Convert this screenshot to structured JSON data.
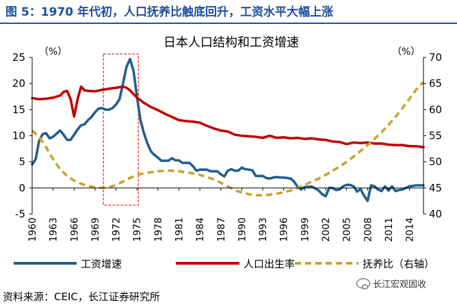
{
  "header": {
    "title": "图 5：1970 年代初，人口抚养比触底回升，工资水平大幅上涨"
  },
  "footer": {
    "source": "资料来源：CEIC，长江证券研究所",
    "watermark": "长江宏观固收"
  },
  "chart_data": {
    "type": "line",
    "title": "日本人口结构和工资增速",
    "left_axis_unit": "（%）",
    "right_axis_unit": "（%）",
    "ylim_left": [
      -5,
      25
    ],
    "yticks_left": [
      -5,
      0,
      5,
      10,
      15,
      20,
      25
    ],
    "ylim_right": [
      40,
      70
    ],
    "yticks_right": [
      40,
      45,
      50,
      55,
      60,
      65,
      70
    ],
    "xlim": [
      1960,
      2016
    ],
    "xticks": [
      "1960",
      "1963",
      "1966",
      "1969",
      "1972",
      "1975",
      "1978",
      "1981",
      "1984",
      "1987",
      "1990",
      "1993",
      "1996",
      "1999",
      "2002",
      "2005",
      "2008",
      "2011",
      "2014"
    ],
    "highlight_range": [
      1970.2,
      1975.2
    ],
    "highlight_color": "#e53935",
    "legend_position": "bottom",
    "series": [
      {
        "name": "工资增速",
        "axis": "left",
        "color": "#1f5f8b",
        "style": "solid",
        "points": [
          [
            1960,
            4.5
          ],
          [
            1960.5,
            5.5
          ],
          [
            1961,
            9
          ],
          [
            1961.5,
            10.3
          ],
          [
            1962,
            10.5
          ],
          [
            1962.5,
            9.5
          ],
          [
            1963,
            9.8
          ],
          [
            1963.5,
            10.4
          ],
          [
            1964,
            11
          ],
          [
            1964.5,
            10.2
          ],
          [
            1965,
            9.2
          ],
          [
            1965.5,
            9.2
          ],
          [
            1966,
            10.2
          ],
          [
            1966.5,
            11.2
          ],
          [
            1967,
            12
          ],
          [
            1967.5,
            12.2
          ],
          [
            1968,
            13
          ],
          [
            1968.5,
            13.6
          ],
          [
            1969,
            14.5
          ],
          [
            1969.5,
            15.2
          ],
          [
            1970,
            15.3
          ],
          [
            1970.5,
            15
          ],
          [
            1971,
            15
          ],
          [
            1971.5,
            15.3
          ],
          [
            1972,
            16
          ],
          [
            1972.5,
            17
          ],
          [
            1973,
            20
          ],
          [
            1973.5,
            23.2
          ],
          [
            1974,
            24.7
          ],
          [
            1974.5,
            22.5
          ],
          [
            1975,
            17.5
          ],
          [
            1975.5,
            13
          ],
          [
            1976,
            10.5
          ],
          [
            1976.5,
            8.5
          ],
          [
            1977,
            7
          ],
          [
            1977.5,
            6.3
          ],
          [
            1978,
            5.8
          ],
          [
            1978.5,
            5.2
          ],
          [
            1979,
            5.2
          ],
          [
            1979.5,
            5.2
          ],
          [
            1980,
            5.7
          ],
          [
            1980.5,
            5.3
          ],
          [
            1981,
            5.3
          ],
          [
            1981.5,
            4.8
          ],
          [
            1982,
            4.8
          ],
          [
            1982.5,
            4.8
          ],
          [
            1983,
            4.2
          ],
          [
            1983.5,
            3.3
          ],
          [
            1984,
            3.5
          ],
          [
            1984.5,
            3.5
          ],
          [
            1985,
            3.5
          ],
          [
            1985.5,
            3.2
          ],
          [
            1986,
            3.2
          ],
          [
            1986.5,
            3.2
          ],
          [
            1987,
            2.6
          ],
          [
            1987.5,
            2.2
          ],
          [
            1988,
            3.3
          ],
          [
            1988.5,
            3.6
          ],
          [
            1989,
            3.3
          ],
          [
            1989.5,
            3.3
          ],
          [
            1990,
            3.9
          ],
          [
            1990.5,
            3.6
          ],
          [
            1991,
            3.5
          ],
          [
            1991.5,
            3.4
          ],
          [
            1992,
            2.3
          ],
          [
            1992.5,
            2.3
          ],
          [
            1993,
            2.3
          ],
          [
            1993.5,
            1.9
          ],
          [
            1994,
            1.8
          ],
          [
            1994.5,
            2
          ],
          [
            1995,
            2.1
          ],
          [
            1995.5,
            2
          ],
          [
            1996,
            2
          ],
          [
            1996.5,
            1.9
          ],
          [
            1997,
            1.8
          ],
          [
            1997.5,
            1.2
          ],
          [
            1998,
            0.2
          ],
          [
            1998.5,
            -0.3
          ],
          [
            1999,
            0.2
          ],
          [
            1999.5,
            0.2
          ],
          [
            2000,
            0.3
          ],
          [
            2000.5,
            -0.1
          ],
          [
            2001,
            -0.5
          ],
          [
            2001.5,
            -1.2
          ],
          [
            2002,
            -1.6
          ],
          [
            2002.5,
            0
          ],
          [
            2003,
            0
          ],
          [
            2003.5,
            -0.4
          ],
          [
            2004,
            -0.3
          ],
          [
            2004.5,
            0.3
          ],
          [
            2005,
            0.6
          ],
          [
            2005.5,
            0.6
          ],
          [
            2006,
            0.3
          ],
          [
            2006.5,
            -0.7
          ],
          [
            2007,
            -0.2
          ],
          [
            2007.5,
            -1.5
          ],
          [
            2008,
            -2.5
          ],
          [
            2008.5,
            0.5
          ],
          [
            2009,
            0.3
          ],
          [
            2009.5,
            -0.3
          ],
          [
            2010,
            -0.6
          ],
          [
            2010.5,
            0.3
          ],
          [
            2011,
            -0.5
          ],
          [
            2011.5,
            0.3
          ],
          [
            2012,
            -0.6
          ],
          [
            2012.5,
            -0.4
          ],
          [
            2013,
            -0.3
          ],
          [
            2013.5,
            0
          ],
          [
            2014,
            0.3
          ],
          [
            2014.5,
            0.4
          ],
          [
            2015,
            0.5
          ],
          [
            2016,
            0.5
          ]
        ]
      },
      {
        "name": "人口出生率",
        "axis": "left",
        "color": "#c00000",
        "style": "solid",
        "points": [
          [
            1960,
            17.2
          ],
          [
            1961,
            17
          ],
          [
            1962,
            17.1
          ],
          [
            1963,
            17.3
          ],
          [
            1964,
            17.7
          ],
          [
            1964.5,
            18.4
          ],
          [
            1965,
            18.6
          ],
          [
            1965.5,
            17
          ],
          [
            1966,
            13.7
          ],
          [
            1966.5,
            17
          ],
          [
            1967,
            19.4
          ],
          [
            1967.5,
            18.7
          ],
          [
            1968,
            18.6
          ],
          [
            1969,
            18.5
          ],
          [
            1970,
            18.8
          ],
          [
            1971,
            19
          ],
          [
            1972,
            19.2
          ],
          [
            1973,
            19.4
          ],
          [
            1973.5,
            19.2
          ],
          [
            1974,
            18.7
          ],
          [
            1975,
            17.3
          ],
          [
            1976,
            16.3
          ],
          [
            1977,
            15.5
          ],
          [
            1978,
            14.9
          ],
          [
            1979,
            14.2
          ],
          [
            1980,
            13.6
          ],
          [
            1981,
            13
          ],
          [
            1982,
            12.8
          ],
          [
            1983,
            12.7
          ],
          [
            1984,
            12.5
          ],
          [
            1985,
            11.9
          ],
          [
            1986,
            11.4
          ],
          [
            1987,
            11
          ],
          [
            1988,
            10.8
          ],
          [
            1989,
            10.2
          ],
          [
            1990,
            10
          ],
          [
            1991,
            9.9
          ],
          [
            1992,
            9.8
          ],
          [
            1993,
            9.6
          ],
          [
            1994,
            10
          ],
          [
            1995,
            9.6
          ],
          [
            1996,
            9.7
          ],
          [
            1997,
            9.5
          ],
          [
            1998,
            9.6
          ],
          [
            1999,
            9.4
          ],
          [
            2000,
            9.5
          ],
          [
            2001,
            9.3
          ],
          [
            2002,
            9.2
          ],
          [
            2003,
            8.9
          ],
          [
            2004,
            8.8
          ],
          [
            2005,
            8.4
          ],
          [
            2006,
            8.7
          ],
          [
            2007,
            8.6
          ],
          [
            2008,
            8.7
          ],
          [
            2009,
            8.5
          ],
          [
            2010,
            8.5
          ],
          [
            2011,
            8.3
          ],
          [
            2012,
            8.2
          ],
          [
            2013,
            8.2
          ],
          [
            2014,
            8
          ],
          [
            2015,
            8
          ],
          [
            2016,
            7.8
          ]
        ]
      },
      {
        "name": "抚养比（右轴）",
        "axis": "right",
        "color": "#c9a227",
        "style": "dashed",
        "points": [
          [
            1960,
            56
          ],
          [
            1961,
            54.8
          ],
          [
            1962,
            52.8
          ],
          [
            1963,
            50.5
          ],
          [
            1964,
            48.6
          ],
          [
            1965,
            47.3
          ],
          [
            1966,
            46.4
          ],
          [
            1967,
            45.8
          ],
          [
            1968,
            45.4
          ],
          [
            1969,
            45.1
          ],
          [
            1970,
            45
          ],
          [
            1971,
            45.1
          ],
          [
            1972,
            45.6
          ],
          [
            1973,
            46.2
          ],
          [
            1974,
            46.9
          ],
          [
            1975,
            47.5
          ],
          [
            1976,
            47.8
          ],
          [
            1977,
            48
          ],
          [
            1978,
            48.2
          ],
          [
            1979,
            48.3
          ],
          [
            1980,
            48.3
          ],
          [
            1981,
            48.2
          ],
          [
            1982,
            48
          ],
          [
            1983,
            47.8
          ],
          [
            1984,
            47.5
          ],
          [
            1985,
            47.1
          ],
          [
            1986,
            46.6
          ],
          [
            1987,
            46
          ],
          [
            1988,
            45.3
          ],
          [
            1989,
            44.6
          ],
          [
            1990,
            44.1
          ],
          [
            1991,
            43.8
          ],
          [
            1992,
            43.6
          ],
          [
            1993,
            43.6
          ],
          [
            1994,
            43.7
          ],
          [
            1995,
            43.9
          ],
          [
            1996,
            44.2
          ],
          [
            1997,
            44.5
          ],
          [
            1998,
            45
          ],
          [
            1999,
            45.6
          ],
          [
            2000,
            46.2
          ],
          [
            2001,
            46.8
          ],
          [
            2002,
            47.5
          ],
          [
            2003,
            48.3
          ],
          [
            2004,
            49.1
          ],
          [
            2005,
            50
          ],
          [
            2006,
            51
          ],
          [
            2007,
            52.1
          ],
          [
            2008,
            53.2
          ],
          [
            2009,
            54.4
          ],
          [
            2010,
            55.7
          ],
          [
            2011,
            57.1
          ],
          [
            2012,
            58.6
          ],
          [
            2013,
            60.3
          ],
          [
            2014,
            62.1
          ],
          [
            2015,
            63.9
          ],
          [
            2016,
            65.3
          ]
        ]
      }
    ]
  }
}
